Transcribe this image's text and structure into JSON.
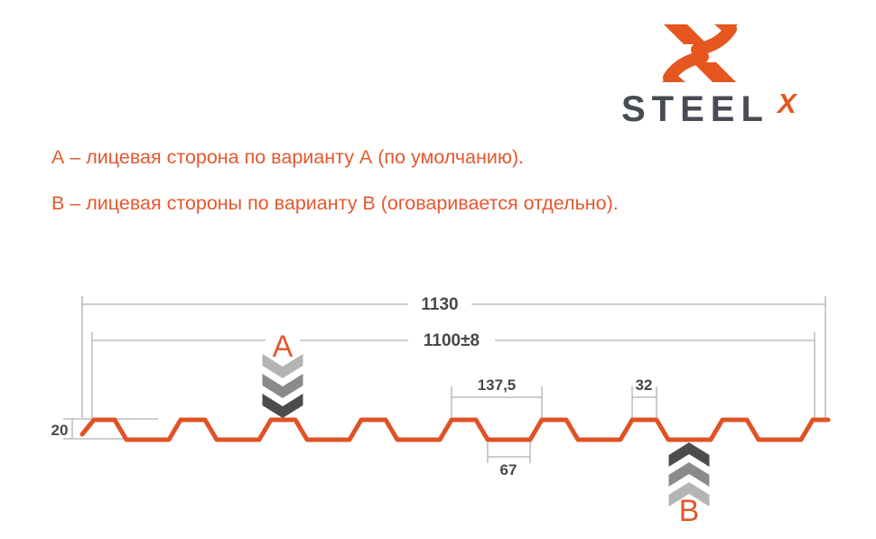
{
  "logo": {
    "wordmark": "STEEL",
    "x_mark": "X"
  },
  "notes": {
    "line_a": "А – лицевая сторона по варианту А (по умолчанию).",
    "line_b": "В – лицевая стороны по варианту В (оговаривается отдельно)."
  },
  "diagram": {
    "dim_total_width": "1130",
    "dim_working_width": "1100±8",
    "dim_pitch": "137,5",
    "dim_rib_top": "32",
    "dim_bottom_flat": "67",
    "dim_height": "20",
    "marker_a": "A",
    "marker_b": "B"
  },
  "colors": {
    "accent_orange": "#E05226",
    "letter_orange": "#E4582F",
    "logo_orange": "#E6571F",
    "dim_text_gray": "#47474D",
    "dim_line_gray": "#B0B0B3",
    "chevron_light": "#B4B4B4",
    "chevron_mid": "#8B8B8B",
    "chevron_dark": "#4C4C4C"
  }
}
